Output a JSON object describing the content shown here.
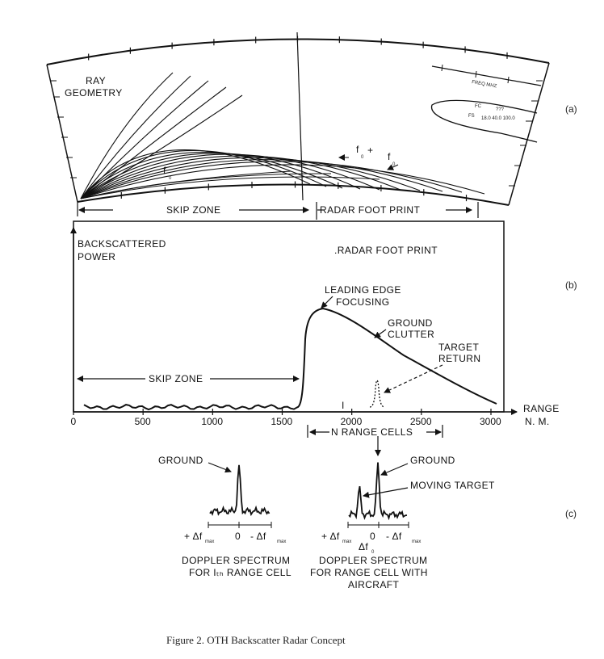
{
  "panel_a": {
    "title_line1": "RAY",
    "title_line2": "GEOMETRY",
    "label": "(a)",
    "f0_label": "f",
    "f0_sub": "0",
    "f0_plus_label": "f",
    "f0_plus_sub": "0",
    "plus": "+",
    "freq_label": "FREQ MHZ",
    "skip_zone": "SKIP ZONE",
    "radar_foot_print": "RADAR FOOT PRINT"
  },
  "panel_b": {
    "label": "(b)",
    "ylabel_line1": "BACKSCATTERED",
    "ylabel_line2": "POWER",
    "radar_foot_print": ".RADAR FOOT PRINT",
    "leading_edge_line1": "LEADING EDGE",
    "leading_edge_line2": "FOCUSING",
    "ground_line1": "GROUND",
    "ground_line2": "CLUTTER",
    "target_line1": "TARGET",
    "target_line2": "RETURN",
    "skip_zone": "SKIP ZONE",
    "marker_i": "I",
    "range_line1": "RANGE",
    "range_line2": "N. M.",
    "n_range_cells": "N RANGE CELLS",
    "x_ticks": [
      "0",
      "500",
      "1000",
      "1500",
      "2000",
      "2500",
      "3000"
    ]
  },
  "panel_c": {
    "label": "(c)",
    "left_ground": "GROUND",
    "left_axis_plus": "+ Δf",
    "left_axis_plus_sub": "max",
    "left_axis_zero": "0",
    "left_axis_minus": "- Δf",
    "left_axis_minus_sub": "max",
    "left_caption_line1": "DOPPLER SPECTRUM",
    "left_caption_line2": "FOR Iₜₕ RANGE CELL",
    "right_ground": "GROUND",
    "right_moving": "MOVING TARGET",
    "right_axis_plus": "+ Δf",
    "right_axis_plus_sub": "max",
    "right_axis_zero": "0",
    "right_axis_df0": "Δf",
    "right_axis_df0_sub": "0",
    "right_axis_minus": "- Δf",
    "right_axis_minus_sub": "max",
    "right_caption_line1": "DOPPLER SPECTRUM",
    "right_caption_line2": "FOR RANGE CELL WITH",
    "right_caption_line3": "AIRCRAFT"
  },
  "caption": "Figure 2.  OTH Backscatter Radar Concept"
}
